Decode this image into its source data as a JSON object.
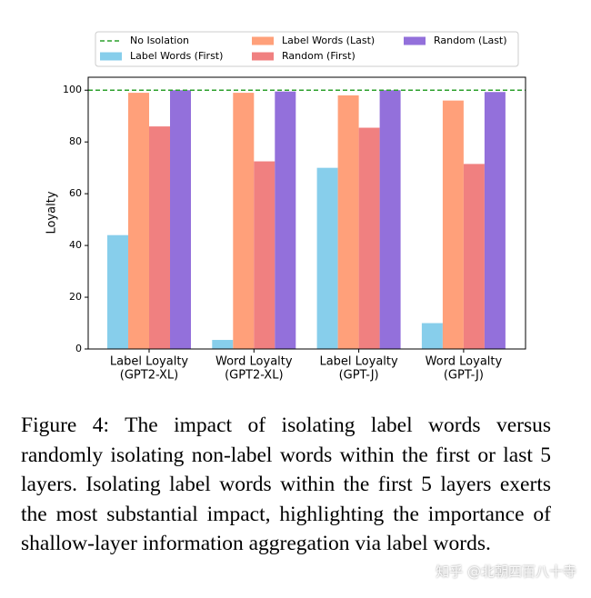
{
  "chart_data": {
    "type": "bar",
    "categories": [
      [
        "Label Loyalty",
        "(GPT2-XL)"
      ],
      [
        "Word Loyalty",
        "(GPT2-XL)"
      ],
      [
        "Label Loyalty",
        "(GPT-J)"
      ],
      [
        "Word Loyalty",
        "(GPT-J)"
      ]
    ],
    "series": [
      {
        "name": "Label Words (First)",
        "color": "#87ceeb",
        "values": [
          44,
          3.5,
          70,
          10
        ]
      },
      {
        "name": "Label Words (Last)",
        "color": "#ffa07a",
        "values": [
          99,
          99,
          98,
          96
        ]
      },
      {
        "name": "Random (First)",
        "color": "#f08080",
        "values": [
          86,
          72.5,
          85.5,
          71.5
        ]
      },
      {
        "name": "Random (Last)",
        "color": "#9370db",
        "values": [
          100,
          99.5,
          100,
          99.3
        ]
      }
    ],
    "reference_line": {
      "name": "No Isolation",
      "value": 100,
      "color": "#2ca02c",
      "style": "dashed"
    },
    "ylabel": "Loyalty",
    "ylim": [
      0,
      105
    ],
    "yticks": [
      0,
      20,
      40,
      60,
      80,
      100
    ]
  },
  "caption": "Figure 4: The impact of isolating label words versus randomly isolating non-label words within the first or last 5 layers. Isolating label words within the first 5 layers exerts the most substantial impact, highlighting the importance of shallow-layer information aggregation via label words.",
  "watermark": "知乎 @北朝四百八十寺"
}
